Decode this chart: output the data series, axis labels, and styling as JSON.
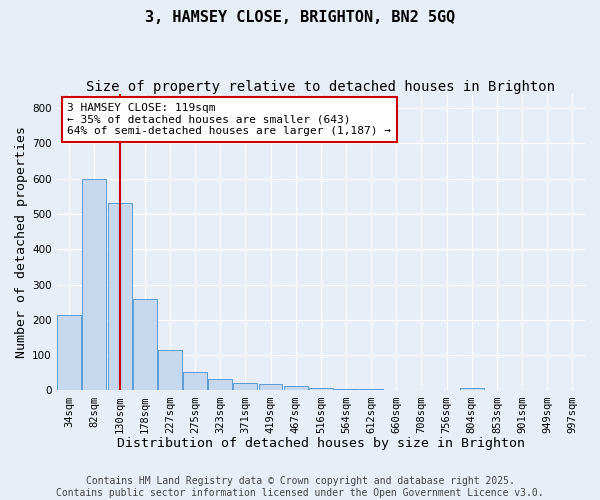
{
  "title1": "3, HAMSEY CLOSE, BRIGHTON, BN2 5GQ",
  "title2": "Size of property relative to detached houses in Brighton",
  "xlabel": "Distribution of detached houses by size in Brighton",
  "ylabel": "Number of detached properties",
  "categories": [
    "34sqm",
    "82sqm",
    "130sqm",
    "178sqm",
    "227sqm",
    "275sqm",
    "323sqm",
    "371sqm",
    "419sqm",
    "467sqm",
    "516sqm",
    "564sqm",
    "612sqm",
    "660sqm",
    "708sqm",
    "756sqm",
    "804sqm",
    "853sqm",
    "901sqm",
    "949sqm",
    "997sqm"
  ],
  "values": [
    213,
    600,
    530,
    260,
    115,
    53,
    32,
    20,
    17,
    12,
    6,
    5,
    3,
    2,
    1,
    0,
    8,
    0,
    0,
    0,
    0
  ],
  "bar_color": "#c5d8ed",
  "bar_edge_color": "#5b9bd5",
  "red_line_index": 2,
  "red_line_color": "#cc0000",
  "annotation_text": "3 HAMSEY CLOSE: 119sqm\n← 35% of detached houses are smaller (643)\n64% of semi-detached houses are larger (1,187) →",
  "annotation_box_color": "#ffffff",
  "annotation_box_edge_color": "#cc0000",
  "ylim": [
    0,
    840
  ],
  "yticks": [
    0,
    100,
    200,
    300,
    400,
    500,
    600,
    700,
    800
  ],
  "footer1": "Contains HM Land Registry data © Crown copyright and database right 2025.",
  "footer2": "Contains public sector information licensed under the Open Government Licence v3.0.",
  "background_color": "#e8eef8",
  "grid_color": "#ffffff",
  "title_fontsize": 11,
  "subtitle_fontsize": 10,
  "axis_label_fontsize": 9.5,
  "tick_fontsize": 7.5,
  "annotation_fontsize": 8,
  "footer_fontsize": 7
}
